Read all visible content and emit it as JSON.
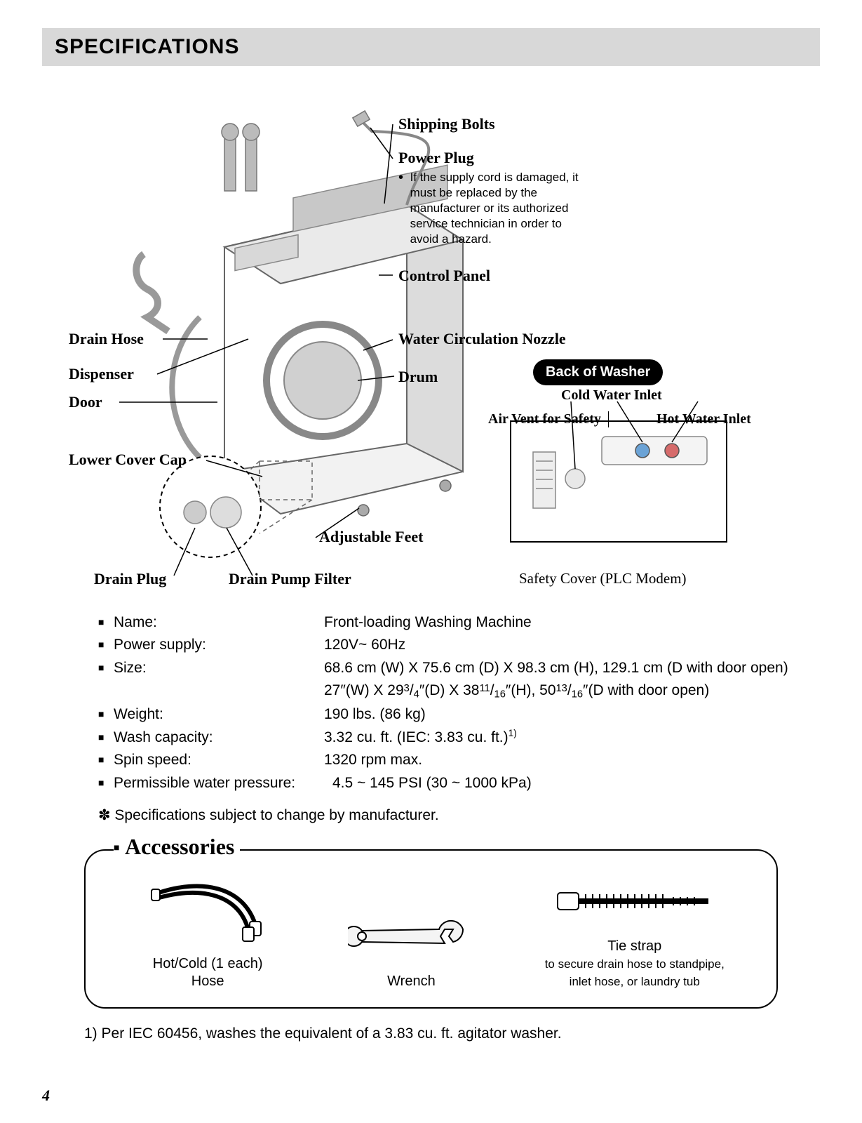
{
  "header": {
    "title": "SPECIFICATIONS"
  },
  "diagram": {
    "shippingBolts": "Shipping Bolts",
    "powerPlug": "Power Plug",
    "powerPlugBullet": "•",
    "powerPlugNote": "If the supply cord is damaged, it must be replaced by the manufacturer or its authorized service technician in order to avoid a hazard.",
    "controlPanel": "Control Panel",
    "waterCirc": "Water Circulation Nozzle",
    "drum": "Drum",
    "drainHose": "Drain Hose",
    "dispenser": "Dispenser",
    "door": "Door",
    "lowerCoverCap": "Lower Cover Cap",
    "adjustableFeet": "Adjustable Feet",
    "drainPlug": "Drain Plug",
    "drainPumpFilter": "Drain Pump Filter",
    "backOfWasher": "Back of Washer",
    "coldWaterInlet": "Cold Water Inlet",
    "hotWaterInlet": "Hot Water Inlet",
    "airVent": "Air Vent for Safety",
    "safetyCover": "Safety Cover (PLC Modem)"
  },
  "specs": {
    "rows": [
      {
        "label": "Name:",
        "value": "Front-loading Washing Machine"
      },
      {
        "label": "Power supply:",
        "value": "120V~ 60Hz"
      },
      {
        "label": "Size:",
        "value": "68.6 cm (W) X 75.6 cm (D) X 98.3 cm (H), 129.1 cm (D with door open)",
        "value2_html": "27″(W) X 29<span class='frac-sup'>3</span>/<span class='frac-sub'>4</span>″(D) X 38<span class='frac-sup'>11</span>/<span class='frac-sub'>16</span>″(H), 50<span class='frac-sup'>13</span>/<span class='frac-sub'>16</span>″(D with door open)"
      },
      {
        "label": "Weight:",
        "value": "190 lbs. (86 kg)"
      },
      {
        "label": "Wash capacity:",
        "value_html": "3.32 cu. ft. (IEC: 3.83 cu. ft.)<sup>1)</sup>"
      },
      {
        "label": "Spin speed:",
        "value": "1320 rpm max."
      },
      {
        "label": "Permissible water pressure:",
        "value": "4.5 ~ 145 PSI (30 ~ 1000 kPa)"
      }
    ],
    "note": "✽ Specifications subject to change by manufacturer."
  },
  "accessories": {
    "title": "Accessories",
    "hose": {
      "line1": "Hot/Cold (1 each)",
      "line2": "Hose"
    },
    "wrench": {
      "line1": "Wrench"
    },
    "tiestrap": {
      "line1": "Tie strap",
      "sub1": "to secure drain hose to standpipe,",
      "sub2": "inlet hose, or laundry tub"
    }
  },
  "footnote": "1) Per IEC 60456, washes the equivalent of a 3.83 cu. ft. agitator washer.",
  "pageNumber": "4"
}
